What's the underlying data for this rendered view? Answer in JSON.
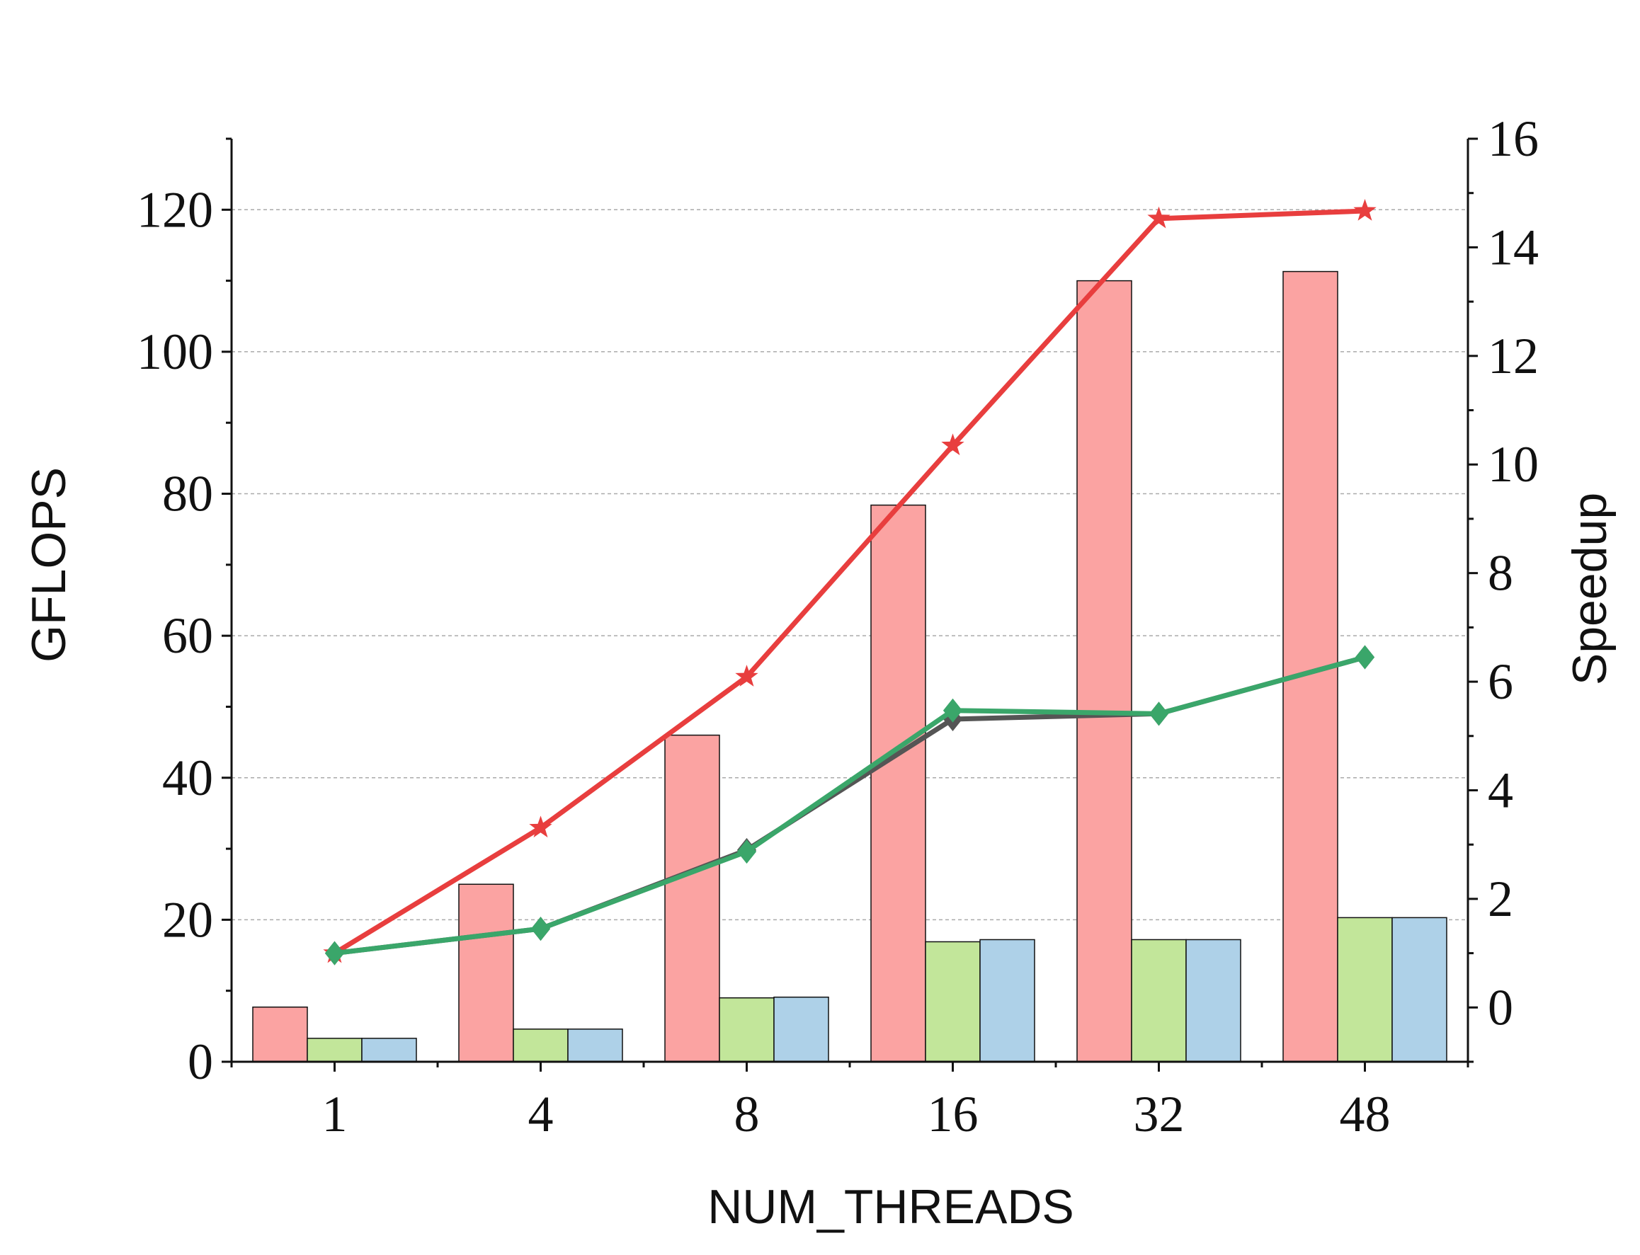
{
  "chart_data": {
    "type": "bar",
    "x_label": "NUM_THREADS",
    "y_label": "GFLOPS",
    "y2_label": "Speedup",
    "categories": [
      "1",
      "4",
      "8",
      "16",
      "32",
      "48"
    ],
    "series": [
      {
        "type": "bar",
        "color": "#fba3a2",
        "values": [
          7.7,
          25,
          46,
          78.4,
          110,
          111.3
        ]
      },
      {
        "type": "bar",
        "color": "#c2e69a",
        "values": [
          3.3,
          4.6,
          9.0,
          16.9,
          17.2,
          20.3
        ]
      },
      {
        "type": "bar",
        "color": "#aed1e8",
        "values": [
          3.3,
          4.6,
          9.1,
          17.2,
          17.2,
          20.3
        ]
      },
      {
        "type": "line",
        "axis": "y2",
        "color": "#e83e3e",
        "marker": "star",
        "values": [
          1.0,
          3.31,
          6.09,
          10.35,
          14.53,
          14.67
        ]
      },
      {
        "type": "line",
        "axis": "y2",
        "color": "#555555",
        "marker": "diamond",
        "values": [
          1.0,
          1.45,
          2.9,
          5.31,
          5.41,
          6.45
        ]
      },
      {
        "type": "line",
        "axis": "y2",
        "color": "#3aa66a",
        "marker": "diamond",
        "values": [
          1.0,
          1.45,
          2.87,
          5.47,
          5.41,
          6.45
        ]
      }
    ],
    "ylim": [
      0,
      130
    ],
    "yticks": [
      0,
      20,
      40,
      60,
      80,
      100,
      120
    ],
    "y2lim": [
      -1,
      16
    ],
    "y2ticks": [
      0,
      2,
      4,
      6,
      8,
      10,
      12,
      14,
      16
    ],
    "grid": true
  }
}
